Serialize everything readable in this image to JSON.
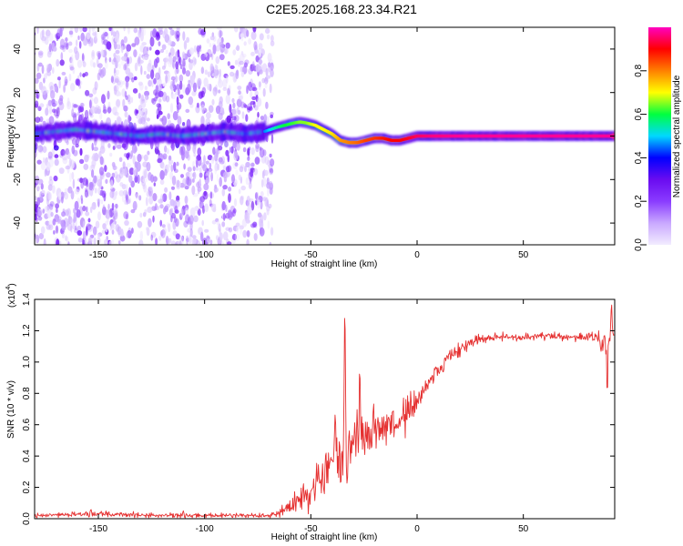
{
  "title": "C2E5.2025.168.23.34.R21",
  "chart_data": [
    {
      "type": "heatmap",
      "xlabel": "Height of straight line (km)",
      "ylabel": "Frequency (Hz)",
      "xlim": [
        -180,
        93
      ],
      "ylim": [
        -50,
        50
      ],
      "xticks": [
        -150,
        -100,
        -50,
        0,
        50
      ],
      "yticks": [
        -40,
        -20,
        0,
        20,
        40
      ],
      "colorbar": {
        "label": "Normalized spectral amplitude",
        "range": [
          0.0,
          1.0
        ],
        "ticks": [
          0.0,
          0.2,
          0.4,
          0.6,
          0.8
        ],
        "colormap": [
          "#f2ecff",
          "#c9a8ff",
          "#8a3cff",
          "#6a0cf0",
          "#0000ff",
          "#00d8ff",
          "#00ff40",
          "#ffff00",
          "#ff8000",
          "#ff0000",
          "#ff00c0"
        ]
      },
      "noise_region_x": [
        -180,
        -70
      ],
      "ridge": {
        "x": [
          -180,
          -170,
          -160,
          -150,
          -140,
          -130,
          -120,
          -110,
          -100,
          -90,
          -80,
          -72,
          -66,
          -62,
          -58,
          -55,
          -52,
          -48,
          -44,
          -40,
          -36,
          -32,
          -28,
          -24,
          -20,
          -16,
          -12,
          -8,
          -4,
          0,
          4,
          8,
          12,
          20,
          40,
          60,
          80,
          92
        ],
        "frequency": [
          1,
          2,
          3,
          2,
          1,
          0,
          1,
          0,
          1,
          2,
          1,
          2,
          4,
          5,
          6,
          6.5,
          6,
          5,
          3,
          1,
          -2,
          -3,
          -3,
          -2,
          -1,
          -1,
          -2,
          -2,
          -1,
          0,
          0,
          0,
          0,
          0,
          0,
          0,
          0,
          0
        ],
        "amplitude": [
          0.35,
          0.4,
          0.45,
          0.35,
          0.3,
          0.3,
          0.35,
          0.3,
          0.3,
          0.4,
          0.3,
          0.45,
          0.55,
          0.6,
          0.62,
          0.65,
          0.65,
          0.7,
          0.7,
          0.72,
          0.78,
          0.8,
          0.82,
          0.85,
          0.86,
          0.88,
          0.9,
          0.9,
          0.92,
          0.95,
          0.96,
          0.97,
          0.97,
          0.98,
          0.98,
          0.98,
          0.98,
          0.98
        ]
      }
    },
    {
      "type": "line",
      "xlabel": "Height of straight line (km)",
      "ylabel": "SNR (10 * v/v)",
      "multiplier_label": "(x10",
      "multiplier_exp": "4",
      "xlim": [
        -180,
        93
      ],
      "ylim": [
        0.0,
        1.4
      ],
      "xticks": [
        -150,
        -100,
        -50,
        0,
        50
      ],
      "yticks": [
        0.0,
        0.2,
        0.4,
        0.6,
        0.8,
        1.0,
        1.2,
        1.4
      ],
      "series": [
        {
          "color": "#e53030",
          "x": [
            -180,
            -150,
            -120,
            -100,
            -80,
            -70,
            -65,
            -60,
            -55,
            -50,
            -45,
            -40,
            -35,
            -30,
            -25,
            -20,
            -15,
            -10,
            -5,
            0,
            5,
            10,
            15,
            20,
            25,
            30,
            35,
            40,
            50,
            60,
            70,
            80,
            85,
            88,
            90,
            92
          ],
          "y": [
            0.02,
            0.03,
            0.02,
            0.02,
            0.02,
            0.02,
            0.03,
            0.07,
            0.12,
            0.18,
            0.26,
            0.34,
            0.42,
            0.48,
            0.52,
            0.56,
            0.6,
            0.62,
            0.68,
            0.76,
            0.86,
            0.95,
            1.02,
            1.08,
            1.12,
            1.14,
            1.15,
            1.16,
            1.16,
            1.17,
            1.16,
            1.16,
            1.16,
            1.12,
            1.15,
            1.16
          ],
          "noise": [
            0.012,
            0.015,
            0.012,
            0.012,
            0.012,
            0.015,
            0.02,
            0.04,
            0.06,
            0.09,
            0.12,
            0.14,
            0.15,
            0.14,
            0.12,
            0.12,
            0.11,
            0.1,
            0.1,
            0.09,
            0.08,
            0.06,
            0.05,
            0.04,
            0.03,
            0.025,
            0.02,
            0.02,
            0.02,
            0.02,
            0.02,
            0.02,
            0.03,
            0.08,
            0.07,
            0.05
          ],
          "spikes": [
            {
              "x": -34,
              "y": 1.36
            },
            {
              "x": -38.5,
              "y": 0.68
            },
            {
              "x": -27,
              "y": 0.95
            },
            {
              "x": -153.5,
              "y": 0.06
            },
            {
              "x": -110,
              "y": 0.05
            },
            {
              "x": 89.5,
              "y": 0.8
            },
            {
              "x": 91.5,
              "y": 1.38
            }
          ]
        }
      ]
    }
  ]
}
